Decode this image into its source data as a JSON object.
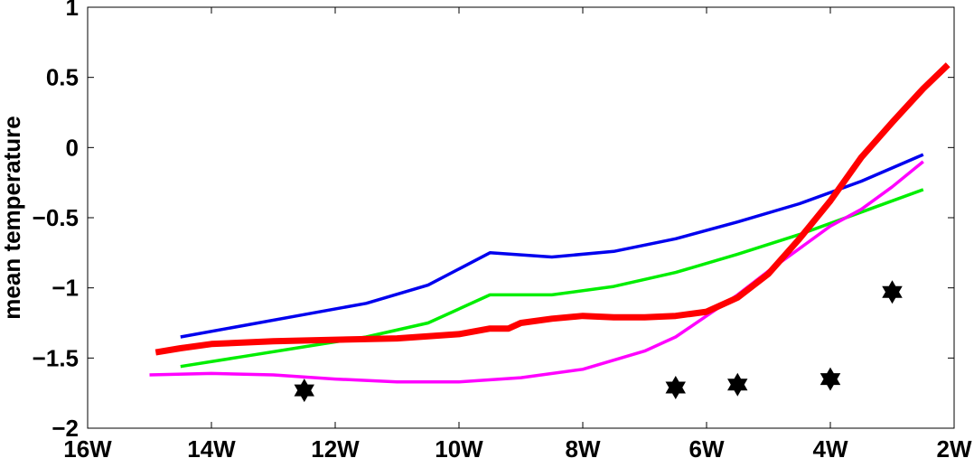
{
  "chart_data": {
    "type": "line",
    "title": "",
    "xlabel": "",
    "ylabel": "mean temperature",
    "xlim": [
      -16,
      -2
    ],
    "ylim": [
      -2,
      1
    ],
    "x_ticks": [
      {
        "value": -16,
        "label": "16W"
      },
      {
        "value": -14,
        "label": "14W"
      },
      {
        "value": -12,
        "label": "12W"
      },
      {
        "value": -10,
        "label": "10W"
      },
      {
        "value": -8,
        "label": "8W"
      },
      {
        "value": -6,
        "label": "6W"
      },
      {
        "value": -4,
        "label": "4W"
      },
      {
        "value": -2,
        "label": "2W"
      }
    ],
    "y_ticks": [
      {
        "value": 1,
        "label": "1"
      },
      {
        "value": 0.5,
        "label": "0.5"
      },
      {
        "value": 0,
        "label": "0"
      },
      {
        "value": -0.5,
        "label": "−0.5"
      },
      {
        "value": -1,
        "label": "−1"
      },
      {
        "value": -1.5,
        "label": "−1.5"
      },
      {
        "value": -2,
        "label": "−2"
      }
    ],
    "grid": false,
    "legend": "none",
    "series": [
      {
        "color": "#0000ee",
        "x": [
          -14.5,
          -13.5,
          -12.5,
          -11.5,
          -10.5,
          -9.5,
          -8.5,
          -7.5,
          -6.5,
          -5.5,
          -4.5,
          -3.5,
          -2.5
        ],
        "y": [
          -1.35,
          -1.27,
          -1.19,
          -1.11,
          -0.98,
          -0.75,
          -0.78,
          -0.74,
          -0.65,
          -0.53,
          -0.4,
          -0.24,
          -0.05
        ]
      },
      {
        "color": "#00ee00",
        "x": [
          -14.5,
          -13.5,
          -12.5,
          -11.5,
          -10.5,
          -9.5,
          -8.5,
          -7.5,
          -6.5,
          -5.5,
          -4.5,
          -3.5,
          -2.5
        ],
        "y": [
          -1.56,
          -1.49,
          -1.42,
          -1.35,
          -1.25,
          -1.05,
          -1.05,
          -0.99,
          -0.89,
          -0.76,
          -0.62,
          -0.46,
          -0.3
        ]
      },
      {
        "color": "#ff00ff",
        "x": [
          -15,
          -14,
          -13,
          -12,
          -11,
          -10,
          -9,
          -8,
          -7,
          -6.5,
          -6,
          -5.5,
          -5,
          -4.5,
          -4,
          -3.5,
          -3,
          -2.5
        ],
        "y": [
          -1.62,
          -1.61,
          -1.62,
          -1.65,
          -1.67,
          -1.67,
          -1.64,
          -1.58,
          -1.45,
          -1.35,
          -1.2,
          -1.05,
          -0.88,
          -0.72,
          -0.56,
          -0.44,
          -0.28,
          -0.1
        ]
      },
      {
        "color": "#ff0000",
        "x": [
          -14.9,
          -14.5,
          -14,
          -13,
          -12,
          -11,
          -10,
          -9.5,
          -9.2,
          -9,
          -8.5,
          -8,
          -7.5,
          -7,
          -6.5,
          -6,
          -5.5,
          -5,
          -4.5,
          -4,
          -3.5,
          -3,
          -2.5,
          -2.1
        ],
        "y": [
          -1.46,
          -1.43,
          -1.4,
          -1.38,
          -1.37,
          -1.36,
          -1.33,
          -1.29,
          -1.29,
          -1.25,
          -1.22,
          -1.2,
          -1.21,
          -1.21,
          -1.2,
          -1.17,
          -1.07,
          -0.9,
          -0.65,
          -0.38,
          -0.07,
          0.18,
          0.42,
          0.59
        ]
      }
    ],
    "markers": {
      "symbol": "hexagram",
      "color": "#000000",
      "x": [
        -12.5,
        -6.5,
        -5.5,
        -4,
        -3
      ],
      "y": [
        -1.73,
        -1.71,
        -1.69,
        -1.65,
        -1.03
      ]
    }
  }
}
